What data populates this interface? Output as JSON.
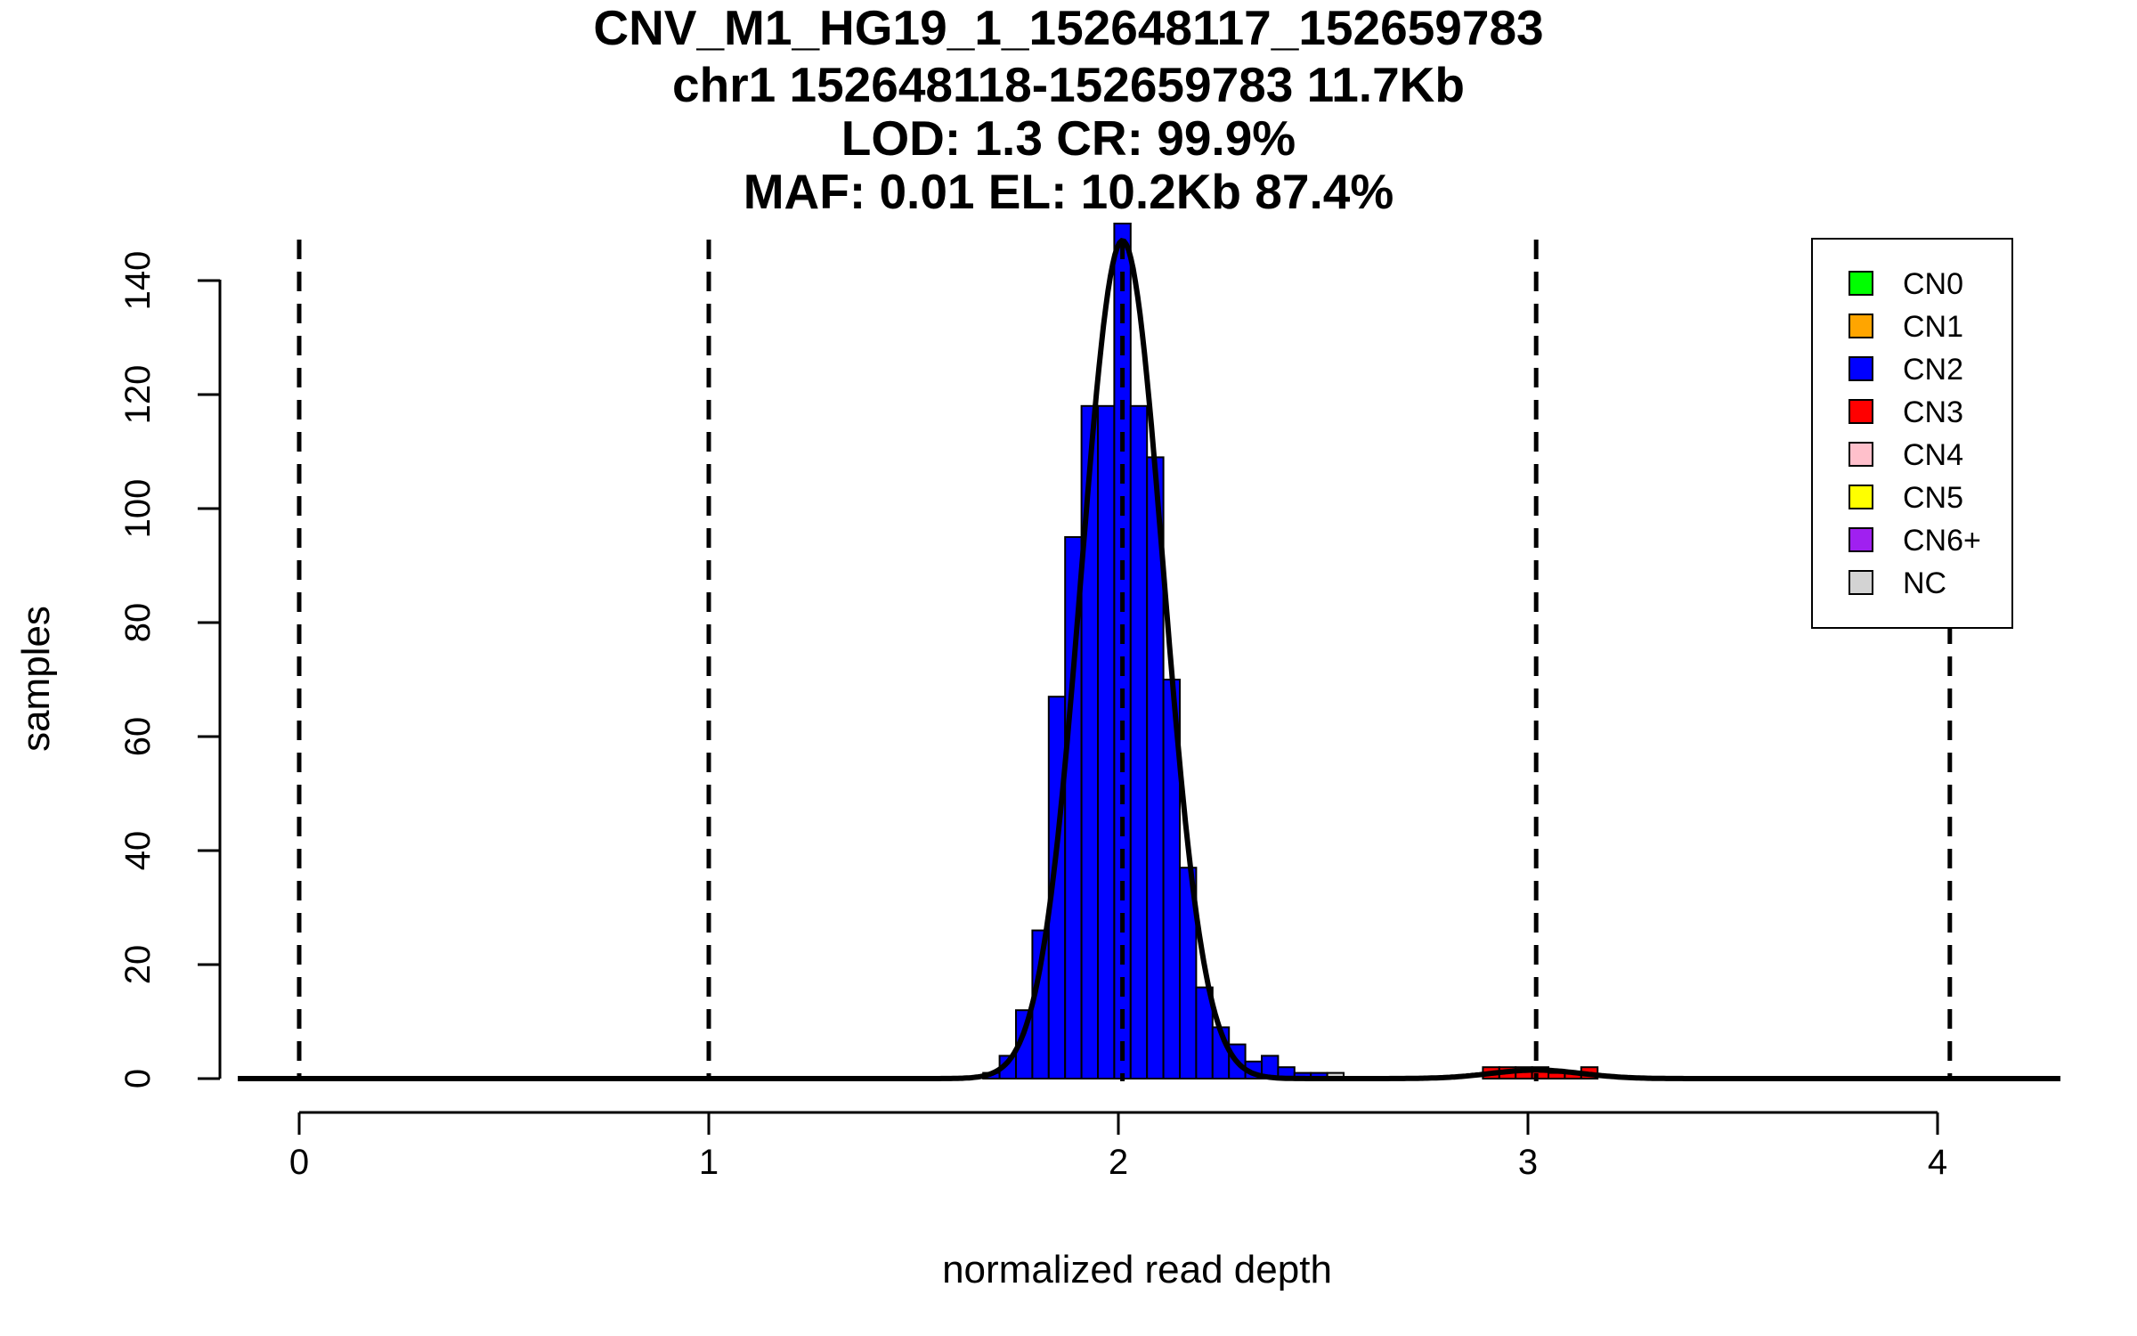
{
  "chart_data": {
    "type": "bar",
    "title_lines": [
      "CNV_M1_HG19_1_152648117_152659783",
      "chr1 152648118-152659783 11.7Kb",
      "LOD: 1.3 CR: 99.9%",
      "MAF: 0.01 EL: 10.2Kb 87.4%"
    ],
    "xlabel": "normalized read depth",
    "ylabel": "samples",
    "xlim": [
      -0.15,
      4.3
    ],
    "ylim": [
      0,
      150
    ],
    "xticks": [
      0,
      1,
      2,
      3,
      4
    ],
    "yticks": [
      0,
      20,
      40,
      60,
      80,
      100,
      120,
      140
    ],
    "dashed_lines_x": [
      0,
      1,
      2.01,
      3.02,
      4.03
    ],
    "bin_width": 0.04,
    "series": [
      {
        "name": "CN2",
        "color": "#0000ff",
        "bins": [
          {
            "x0": 1.67,
            "x1": 1.71,
            "count": 1
          },
          {
            "x0": 1.71,
            "x1": 1.75,
            "count": 4
          },
          {
            "x0": 1.75,
            "x1": 1.79,
            "count": 12
          },
          {
            "x0": 1.79,
            "x1": 1.83,
            "count": 26
          },
          {
            "x0": 1.83,
            "x1": 1.87,
            "count": 67
          },
          {
            "x0": 1.87,
            "x1": 1.91,
            "count": 95
          },
          {
            "x0": 1.91,
            "x1": 1.95,
            "count": 118
          },
          {
            "x0": 1.95,
            "x1": 1.99,
            "count": 118
          },
          {
            "x0": 1.99,
            "x1": 2.03,
            "count": 150
          },
          {
            "x0": 2.03,
            "x1": 2.07,
            "count": 118
          },
          {
            "x0": 2.07,
            "x1": 2.11,
            "count": 109
          },
          {
            "x0": 2.11,
            "x1": 2.15,
            "count": 70
          },
          {
            "x0": 2.15,
            "x1": 2.19,
            "count": 37
          },
          {
            "x0": 2.19,
            "x1": 2.23,
            "count": 16
          },
          {
            "x0": 2.23,
            "x1": 2.27,
            "count": 9
          },
          {
            "x0": 2.27,
            "x1": 2.31,
            "count": 6
          },
          {
            "x0": 2.31,
            "x1": 2.35,
            "count": 3
          },
          {
            "x0": 2.35,
            "x1": 2.39,
            "count": 4
          },
          {
            "x0": 2.39,
            "x1": 2.43,
            "count": 2
          },
          {
            "x0": 2.43,
            "x1": 2.47,
            "count": 1
          },
          {
            "x0": 2.47,
            "x1": 2.51,
            "count": 1
          }
        ]
      },
      {
        "name": "CN3",
        "color": "#ff0000",
        "bins": [
          {
            "x0": 2.89,
            "x1": 2.93,
            "count": 2
          },
          {
            "x0": 2.93,
            "x1": 2.97,
            "count": 2
          },
          {
            "x0": 2.97,
            "x1": 3.01,
            "count": 2
          },
          {
            "x0": 3.01,
            "x1": 3.05,
            "count": 2
          },
          {
            "x0": 3.05,
            "x1": 3.09,
            "count": 1
          },
          {
            "x0": 3.09,
            "x1": 3.13,
            "count": 1
          },
          {
            "x0": 3.13,
            "x1": 3.17,
            "count": 2
          }
        ]
      },
      {
        "name": "NC",
        "color": "#d3d3d3",
        "bins": [
          {
            "x0": 2.51,
            "x1": 2.55,
            "count": 1
          }
        ]
      }
    ],
    "fit_curves": [
      {
        "mean": 2.01,
        "sd": 0.1,
        "peak": 147
      },
      {
        "mean": 3.02,
        "sd": 0.11,
        "peak": 1.5
      }
    ],
    "legend": {
      "position": "top-right",
      "entries": [
        {
          "label": "CN0",
          "color": "#00ff00"
        },
        {
          "label": "CN1",
          "color": "#ffa500"
        },
        {
          "label": "CN2",
          "color": "#0000ff"
        },
        {
          "label": "CN3",
          "color": "#ff0000"
        },
        {
          "label": "CN4",
          "color": "#ffc0cb"
        },
        {
          "label": "CN5",
          "color": "#ffff00"
        },
        {
          "label": "CN6+",
          "color": "#a020f0"
        },
        {
          "label": "NC",
          "color": "#d3d3d3"
        }
      ]
    }
  }
}
